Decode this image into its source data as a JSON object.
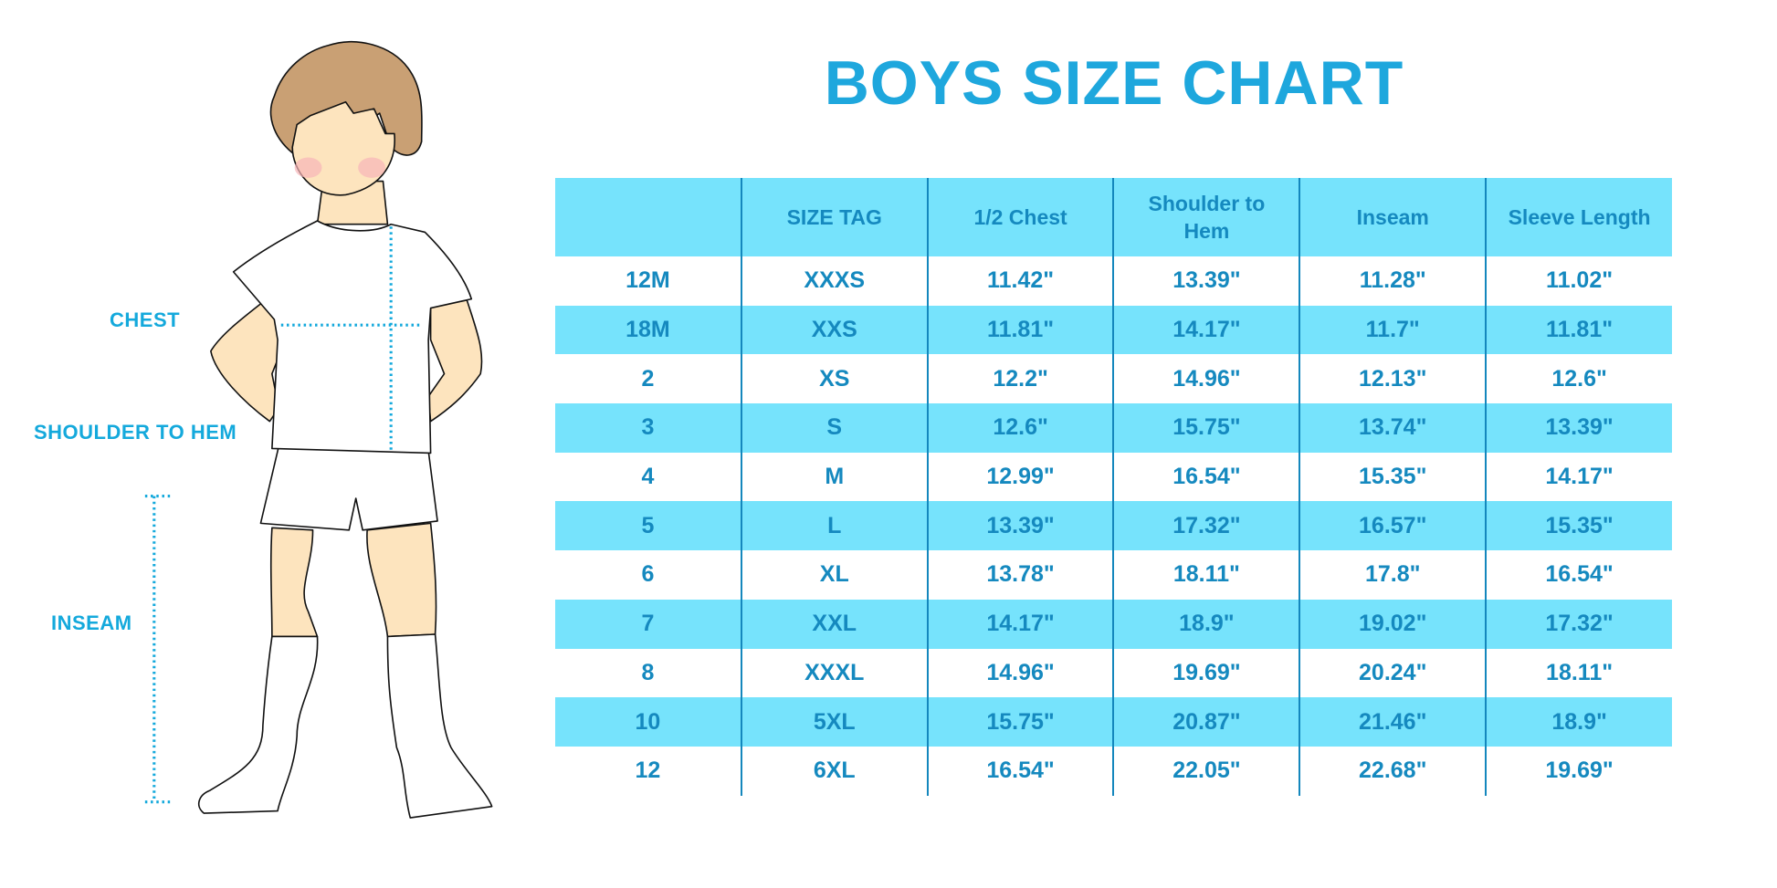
{
  "title": "BOYS SIZE CHART",
  "figure_labels": {
    "chest": "CHEST",
    "shoulder_to_hem": "SHOULDER TO HEM",
    "inseam": "INSEAM"
  },
  "colors": {
    "accent": "#1ea7dd",
    "header_bg": "#76e3fc",
    "table_text": "#1589bf"
  },
  "table": {
    "headers": [
      "",
      "SIZE TAG",
      "1/2 Chest",
      "Shoulder to Hem",
      "Inseam",
      "Sleeve Length"
    ],
    "rows": [
      [
        "12M",
        "XXXS",
        "11.42\"",
        "13.39\"",
        "11.28\"",
        "11.02\""
      ],
      [
        "18M",
        "XXS",
        "11.81\"",
        "14.17\"",
        "11.7\"",
        "11.81\""
      ],
      [
        "2",
        "XS",
        "12.2\"",
        "14.96\"",
        "12.13\"",
        "12.6\""
      ],
      [
        "3",
        "S",
        "12.6\"",
        "15.75\"",
        "13.74\"",
        "13.39\""
      ],
      [
        "4",
        "M",
        "12.99\"",
        "16.54\"",
        "15.35\"",
        "14.17\""
      ],
      [
        "5",
        "L",
        "13.39\"",
        "17.32\"",
        "16.57\"",
        "15.35\""
      ],
      [
        "6",
        "XL",
        "13.78\"",
        "18.11\"",
        "17.8\"",
        "16.54\""
      ],
      [
        "7",
        "XXL",
        "14.17\"",
        "18.9\"",
        "19.02\"",
        "17.32\""
      ],
      [
        "8",
        "XXXL",
        "14.96\"",
        "19.69\"",
        "20.24\"",
        "18.11\""
      ],
      [
        "10",
        "5XL",
        "15.75\"",
        "20.87\"",
        "21.46\"",
        "18.9\""
      ],
      [
        "12",
        "6XL",
        "16.54\"",
        "22.05\"",
        "22.68\"",
        "19.69\""
      ]
    ]
  }
}
